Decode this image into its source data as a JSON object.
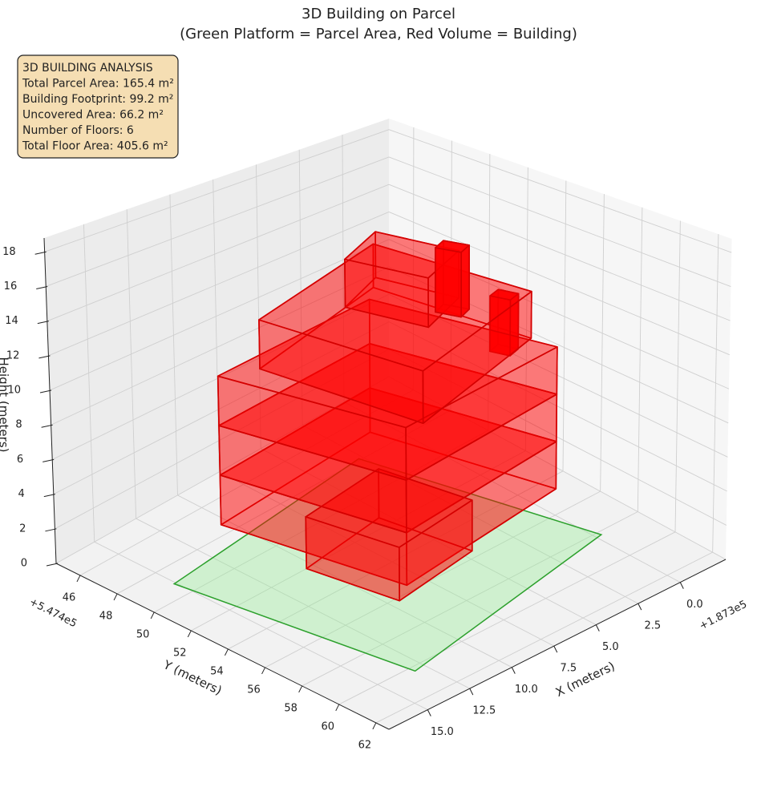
{
  "chart_data": {
    "type": "3d-building",
    "title": [
      "3D Building on Parcel",
      "(Green Platform = Parcel Area, Red Volume = Building)"
    ],
    "annotation": [
      "3D BUILDING ANALYSIS",
      "Total Parcel Area: 165.4 m²",
      "Building Footprint: 99.2 m²",
      "Uncovered Area: 66.2 m²",
      "Number of Floors: 6",
      "Total Floor Area: 405.6 m²"
    ],
    "x_label": "X (meters)",
    "y_label": "Y (meters)",
    "z_label": "Height (meters)",
    "x_offset": "+1.873e5",
    "y_offset": "+5.474e5",
    "xlim": [
      -2.7,
      17.3
    ],
    "ylim": [
      44.7,
      62.7
    ],
    "zlim": [
      0,
      18.8
    ],
    "xticks": [
      {
        "value": 0,
        "label": "0.0"
      },
      2.5,
      {
        "value": 5,
        "label": "5.0"
      },
      7.5,
      {
        "value": 10,
        "label": "10.0"
      },
      12.5,
      {
        "value": 15,
        "label": "15.0"
      }
    ],
    "yticks": [
      46,
      48,
      50,
      52,
      54,
      56,
      58,
      60,
      62
    ],
    "zticks": [
      0,
      2,
      4,
      6,
      8,
      10,
      12,
      14,
      16,
      18
    ],
    "grid": true,
    "parcel": {
      "x": [
        13.1,
        15.1,
        2.7,
        -0.3
      ],
      "y": [
        60.3,
        49.1,
        47.9,
        58.2
      ],
      "color": "#90ee90",
      "edge_color": "#2ca02c"
    },
    "building_color": "#ff0000",
    "building_edge_color": "#d40000",
    "volumes": [
      {
        "x": [
          10.4,
          8.4,
          -1.5,
          0.9
        ],
        "y": [
          47.4,
          55.6,
          54.7,
          46.9
        ],
        "z": [
          0,
          3
        ],
        "alpha": 0.3
      },
      {
        "x": [
          10.4,
          8.4,
          -1.5,
          0.9
        ],
        "y": [
          47.4,
          55.6,
          54.7,
          46.9
        ],
        "z": [
          3,
          6
        ],
        "alpha": 0.3
      },
      {
        "x": [
          10.4,
          8.4,
          -1.5,
          0.9
        ],
        "y": [
          47.4,
          55.6,
          54.7,
          46.9
        ],
        "z": [
          6,
          9
        ],
        "alpha": 0.3
      },
      {
        "x": [
          10.4,
          9.5,
          4.5,
          5.4
        ],
        "y": [
          52.0,
          56.2,
          55.6,
          51.4
        ],
        "z": [
          0,
          3
        ],
        "alpha": 0.3
      },
      {
        "x": [
          8.7,
          7.6,
          -1.3,
          0.0
        ],
        "y": [
          48.1,
          55.8,
          53.5,
          46.3
        ],
        "z": [
          9,
          12
        ],
        "alpha": 0.3
      },
      {
        "x": [
          5.3,
          4.3,
          1.3,
          2.3
        ],
        "y": [
          49.6,
          53.1,
          52.0,
          48.5
        ],
        "z": [
          12,
          15
        ],
        "alpha": 0.3
      },
      {
        "x": [
          3.0,
          2.6,
          1.8,
          2.2
        ],
        "y": [
          52.3,
          53.3,
          53.0,
          52.0
        ],
        "z": [
          12,
          16
        ],
        "alpha": 0.8
      },
      {
        "x": [
          0.8,
          0.5,
          -0.2,
          0.1
        ],
        "y": [
          53.2,
          54.0,
          53.8,
          53.0
        ],
        "z": [
          9,
          12.5
        ],
        "alpha": 0.8
      }
    ]
  }
}
